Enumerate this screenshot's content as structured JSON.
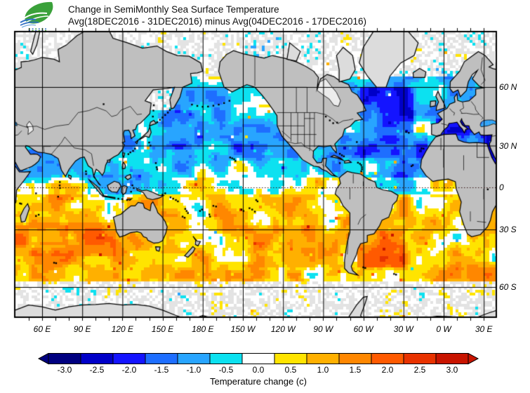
{
  "header": {
    "title_line1": "Change in SemiMonthly Sea Surface Temperature",
    "title_line2": "Avg(18DEC2016 - 31DEC2016) minus Avg(04DEC2016 - 17DEC2016)",
    "logo": {
      "leaf_color": "#3aa13a",
      "wave_color": "#2f6fc4",
      "wave_light_color": "#7fb2e0"
    }
  },
  "map": {
    "lat_labels": [
      "60 N",
      "30 N",
      "0",
      "30 S",
      "60 S"
    ],
    "lon_labels": [
      "60 E",
      "90 E",
      "120 E",
      "150 E",
      "180 E",
      "150 W",
      "120 W",
      "90 W",
      "60 W",
      "30 W",
      "0 W",
      "30 E"
    ],
    "land_color": "#bfbfbf",
    "ice_land_color": "#dcdcdc",
    "ocean_ice_color": "#e3e3e3",
    "grid_color": "#000000",
    "coast_color": "#000000",
    "lake_color": "#c4dcec",
    "inland_sea_color": "#ececec"
  },
  "colorbar": {
    "labels": [
      "-3.0",
      "-2.5",
      "-2.0",
      "-1.5",
      "-1.0",
      "-0.5",
      "0.0",
      "0.5",
      "1.0",
      "1.5",
      "2.0",
      "2.5",
      "3.0"
    ],
    "caption": "Temperature change  (c)"
  },
  "chart_data": {
    "type": "heatmap",
    "title": "Change in SemiMonthly Sea Surface Temperature",
    "subtitle": "Avg(18DEC2016 - 31DEC2016) minus Avg(04DEC2016 - 17DEC2016)",
    "units": "Temperature change (c)",
    "projection": "Mercator, Pacific-centered, left edge near 40E",
    "scale_values": [
      -3.0,
      -2.5,
      -2.0,
      -1.5,
      -1.0,
      -0.5,
      0.0,
      0.5,
      1.0,
      1.5,
      2.0,
      2.5,
      3.0
    ],
    "scale_colors": [
      "#000080",
      "#0000c8",
      "#1414ff",
      "#1e6eff",
      "#28a5ff",
      "#0ce1f0",
      "#ffffff",
      "#ffe400",
      "#ffb000",
      "#ff8700",
      "#ff5a00",
      "#e83200",
      "#c81400"
    ],
    "lat_gridlines_deg": [
      60,
      30,
      0,
      -30,
      -60
    ],
    "lon_gridlines_deg": [
      60,
      90,
      120,
      150,
      180,
      -150,
      -120,
      -90,
      -60,
      -30,
      0,
      30
    ],
    "lat_bias": [
      {
        "lat": [
          60,
          84
        ],
        "v": -0.35
      },
      {
        "lat": [
          22,
          60
        ],
        "v": -0.7
      },
      {
        "lat": [
          8,
          22
        ],
        "v": -0.35
      },
      {
        "lat": [
          -6,
          8
        ],
        "v": 0.05
      },
      {
        "lat": [
          -58,
          -6
        ],
        "v": 0.7
      },
      {
        "lat": [
          -70,
          -58
        ],
        "v": 0.1
      }
    ],
    "anomaly_regions": [
      {
        "name": "arctic-ice",
        "lon": [
          -180,
          180
        ],
        "lat": [
          64,
          84
        ],
        "bias": 0,
        "ice": true
      },
      {
        "name": "antarctic-ice",
        "lon": [
          -180,
          180
        ],
        "lat": [
          -70,
          -58
        ],
        "bias": 0,
        "ice": true
      },
      {
        "name": "sea-of-okhotsk-ice",
        "lon": [
          138,
          158
        ],
        "lat": [
          50,
          62
        ],
        "bias": 0,
        "ice": true
      },
      {
        "name": "hudson-bay-ice",
        "lon": [
          -96,
          -76
        ],
        "lat": [
          51,
          64
        ],
        "bias": 0,
        "ice": true
      },
      {
        "name": "nw-pacific-cooling",
        "lon": [
          138,
          188
        ],
        "lat": [
          28,
          50
        ],
        "bias": -0.5
      },
      {
        "name": "ne-pacific-cooling",
        "lon": [
          -172,
          -118
        ],
        "lat": [
          20,
          52
        ],
        "bias": -0.3
      },
      {
        "name": "north-atlantic-strong-cooling",
        "lon": [
          -62,
          -22
        ],
        "lat": [
          38,
          60
        ],
        "bias": -0.85
      },
      {
        "name": "subtropical-atlantic-cooling",
        "lon": [
          -80,
          -12
        ],
        "lat": [
          8,
          38
        ],
        "bias": -0.6
      },
      {
        "name": "mediterranean-cooling",
        "lon": [
          -6,
          37
        ],
        "lat": [
          30,
          46
        ],
        "bias": -1.15
      },
      {
        "name": "red-sea-cooling",
        "lon": [
          31,
          45
        ],
        "lat": [
          11,
          30
        ],
        "bias": -1.0
      },
      {
        "name": "arabian-sea-cooling",
        "lon": [
          45,
          78
        ],
        "lat": [
          4,
          28
        ],
        "bias": -0.55
      },
      {
        "name": "bay-of-bengal-cooling",
        "lon": [
          78,
          100
        ],
        "lat": [
          4,
          23
        ],
        "bias": -0.5
      },
      {
        "name": "indonesia-cooling",
        "lon": [
          95,
          135
        ],
        "lat": [
          -10,
          10
        ],
        "bias": -0.45
      },
      {
        "name": "caribbean-cooling",
        "lon": [
          -98,
          -58
        ],
        "lat": [
          8,
          30
        ],
        "bias": -0.35
      },
      {
        "name": "sw-atlantic-warming",
        "lon": [
          -64,
          -28
        ],
        "lat": [
          -52,
          -32
        ],
        "bias": 0.85
      },
      {
        "name": "s-indian-warming",
        "lon": [
          38,
          115
        ],
        "lat": [
          -46,
          -26
        ],
        "bias": 0.5
      },
      {
        "name": "w-indian-30s-warm-band",
        "lon": [
          40,
          80
        ],
        "lat": [
          -40,
          -28
        ],
        "bias": 0.45
      },
      {
        "name": "s-central-pacific-warming",
        "lon": [
          -165,
          -95
        ],
        "lat": [
          -52,
          -28
        ],
        "bias": 0.4
      },
      {
        "name": "tasman-warming",
        "lon": [
          148,
          180
        ],
        "lat": [
          -45,
          -28
        ],
        "bias": 0.3
      },
      {
        "name": "equatorial-pacific-neutral",
        "lon": [
          -180,
          -95
        ],
        "lat": [
          -8,
          8
        ],
        "bias": -0.1
      },
      {
        "name": "black-sea-cooling",
        "lon": [
          27,
          42
        ],
        "lat": [
          40,
          47
        ],
        "bias": -1.1
      }
    ]
  }
}
